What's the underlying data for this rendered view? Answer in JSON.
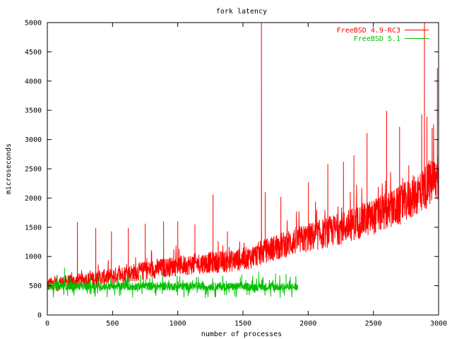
{
  "chart_data": {
    "type": "line",
    "title": "fork latency",
    "xlabel": "number of processes",
    "ylabel": "microseconds",
    "xlim": [
      0,
      3000
    ],
    "ylim": [
      0,
      5000
    ],
    "xticks": [
      0,
      500,
      1000,
      1500,
      2000,
      2500,
      3000
    ],
    "yticks": [
      0,
      500,
      1000,
      1500,
      2000,
      2500,
      3000,
      3500,
      4000,
      4500,
      5000
    ],
    "grid": false,
    "legend_position": "top-right",
    "series": [
      {
        "name": "FreeBSD 4.9-RC3",
        "color": "#ff0000",
        "x_range": [
          0,
          3000
        ],
        "trend": [
          [
            0,
            520
          ],
          [
            200,
            570
          ],
          [
            400,
            630
          ],
          [
            600,
            700
          ],
          [
            800,
            780
          ],
          [
            1000,
            840
          ],
          [
            1200,
            890
          ],
          [
            1400,
            920
          ],
          [
            1550,
            980
          ],
          [
            1700,
            1120
          ],
          [
            1900,
            1260
          ],
          [
            2100,
            1380
          ],
          [
            2300,
            1520
          ],
          [
            2500,
            1680
          ],
          [
            2700,
            1860
          ],
          [
            2850,
            2100
          ],
          [
            3000,
            2350
          ]
        ],
        "spikes": [
          [
            230,
            1590
          ],
          [
            370,
            1490
          ],
          [
            490,
            1430
          ],
          [
            620,
            1490
          ],
          [
            750,
            1560
          ],
          [
            890,
            1600
          ],
          [
            1000,
            1600
          ],
          [
            1130,
            1550
          ],
          [
            1270,
            2060
          ],
          [
            1380,
            1430
          ],
          [
            1640,
            5000
          ],
          [
            1670,
            2100
          ],
          [
            1790,
            2020
          ],
          [
            2000,
            2270
          ],
          [
            2150,
            2580
          ],
          [
            2270,
            2620
          ],
          [
            2350,
            2730
          ],
          [
            2450,
            3110
          ],
          [
            2600,
            3490
          ],
          [
            2700,
            3220
          ],
          [
            2770,
            2560
          ],
          [
            2870,
            3430
          ],
          [
            2890,
            5000
          ],
          [
            2910,
            3390
          ],
          [
            2950,
            3200
          ],
          [
            2990,
            4220
          ]
        ]
      },
      {
        "name": "FreeBSD 5.1",
        "color": "#00c000",
        "x_range": [
          0,
          1920
        ],
        "trend": [
          [
            0,
            500
          ],
          [
            500,
            490
          ],
          [
            1000,
            490
          ],
          [
            1500,
            485
          ],
          [
            1920,
            480
          ]
        ],
        "spikes": [
          [
            130,
            810
          ],
          [
            1490,
            690
          ],
          [
            1620,
            740
          ],
          [
            1750,
            710
          ],
          [
            1830,
            700
          ]
        ]
      }
    ]
  }
}
